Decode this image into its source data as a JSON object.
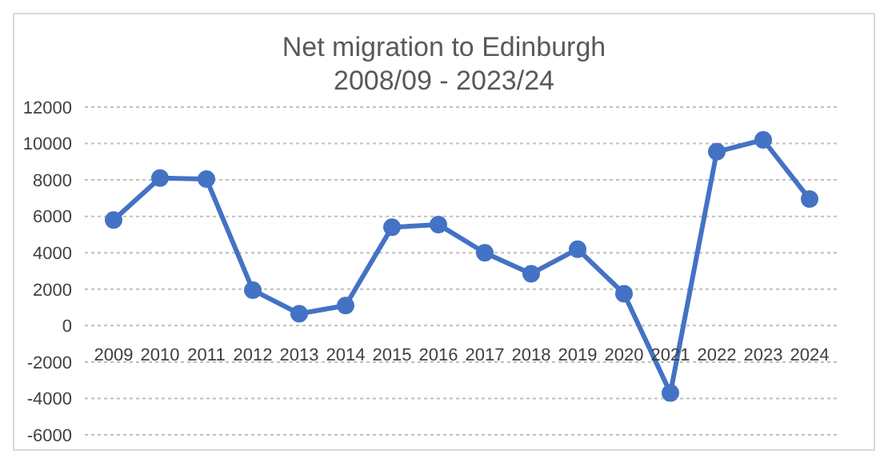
{
  "chart_data": {
    "type": "line",
    "title": "Net migration to Edinburgh",
    "subtitle": "2008/09 - 2023/24",
    "categories": [
      "2009",
      "2010",
      "2011",
      "2012",
      "2013",
      "2014",
      "2015",
      "2016",
      "2017",
      "2018",
      "2019",
      "2020",
      "2021",
      "2022",
      "2023",
      "2024"
    ],
    "series": [
      {
        "color": "#4472c4",
        "values": [
          5800,
          8100,
          8050,
          1950,
          650,
          1100,
          5400,
          5550,
          4000,
          2850,
          4200,
          1750,
          -3700,
          9550,
          10200,
          6950
        ]
      }
    ],
    "ylim": [
      -6000,
      12000
    ],
    "yticks": [
      -6000,
      -4000,
      -2000,
      0,
      2000,
      4000,
      6000,
      8000,
      10000,
      12000
    ],
    "grid": "y",
    "marker": "circle",
    "line_style": "solid"
  }
}
